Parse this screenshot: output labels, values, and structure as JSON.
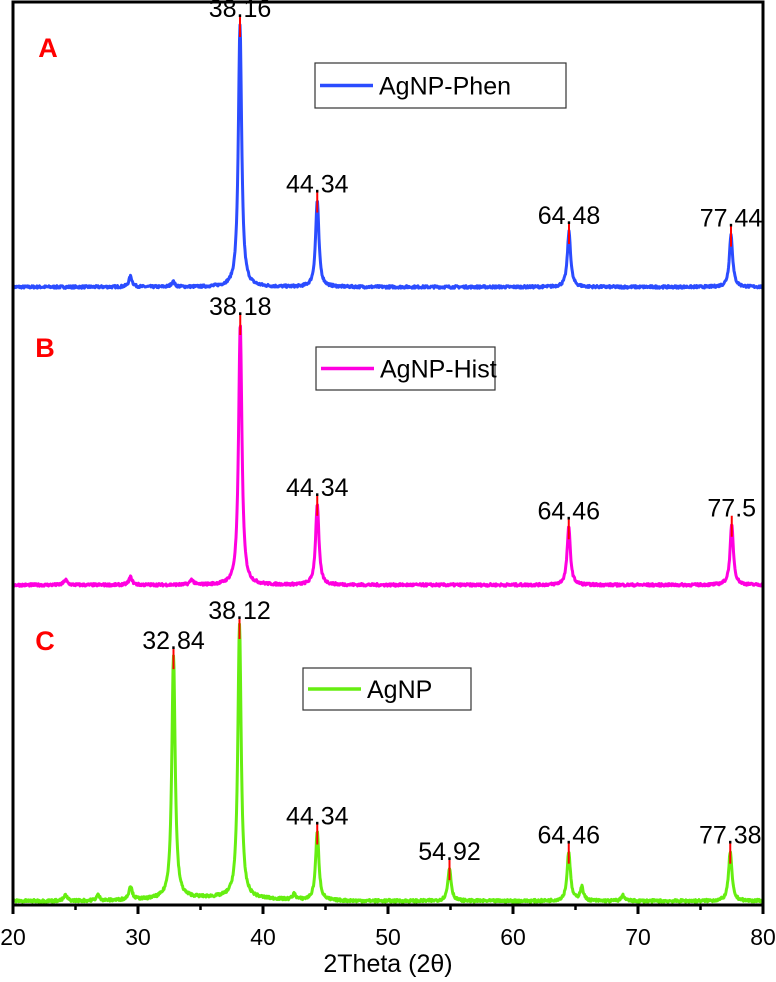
{
  "chart_data": {
    "type": "line",
    "xlabel": "2Theta (2θ)",
    "ylabel": "",
    "xlim": [
      20,
      80
    ],
    "x_ticks": [
      20,
      30,
      40,
      50,
      60,
      70,
      80
    ],
    "x_tick_labels": [
      "20",
      "30",
      "40",
      "50",
      "60",
      "70",
      "80"
    ],
    "y_ticks_shown": false,
    "grid": false,
    "layout": "three vertically stacked panels sharing x axis",
    "marker_color": "#ff0000",
    "panel_letter_color": "#ff0000",
    "panels": [
      {
        "letter": "A",
        "series": {
          "name": "AgNP-Phen",
          "color": "#2b4cff"
        },
        "legend": "top-center",
        "peaks": [
          {
            "x": 29.4,
            "rel_intensity": 4
          },
          {
            "x": 32.8,
            "rel_intensity": 2
          },
          {
            "x": 38.16,
            "rel_intensity": 100,
            "label": "38.16"
          },
          {
            "x": 44.34,
            "rel_intensity": 33,
            "label": "44.34"
          },
          {
            "x": 64.48,
            "rel_intensity": 21,
            "label": "64.48"
          },
          {
            "x": 77.44,
            "rel_intensity": 20,
            "label": "77.44"
          }
        ]
      },
      {
        "letter": "B",
        "series": {
          "name": "AgNP-Hist",
          "color": "#ff00e0"
        },
        "legend": "top-center",
        "peaks": [
          {
            "x": 24.2,
            "rel_intensity": 2
          },
          {
            "x": 29.4,
            "rel_intensity": 3
          },
          {
            "x": 34.3,
            "rel_intensity": 2
          },
          {
            "x": 38.18,
            "rel_intensity": 100,
            "label": "38.18"
          },
          {
            "x": 44.34,
            "rel_intensity": 31,
            "label": "44.34"
          },
          {
            "x": 64.46,
            "rel_intensity": 22,
            "label": "64.46"
          },
          {
            "x": 77.5,
            "rel_intensity": 23,
            "label": "77.5"
          }
        ]
      },
      {
        "letter": "C",
        "series": {
          "name": "AgNP",
          "color": "#66ee11"
        },
        "legend": "top-center",
        "peaks": [
          {
            "x": 24.2,
            "rel_intensity": 2
          },
          {
            "x": 26.8,
            "rel_intensity": 2
          },
          {
            "x": 29.4,
            "rel_intensity": 5
          },
          {
            "x": 32.84,
            "rel_intensity": 89,
            "label": "32.84"
          },
          {
            "x": 38.12,
            "rel_intensity": 100,
            "label": "38.12"
          },
          {
            "x": 42.5,
            "rel_intensity": 2
          },
          {
            "x": 44.34,
            "rel_intensity": 25,
            "label": "44.34"
          },
          {
            "x": 54.92,
            "rel_intensity": 12,
            "label": "54.92"
          },
          {
            "x": 64.46,
            "rel_intensity": 18,
            "label": "64.46"
          },
          {
            "x": 65.5,
            "rel_intensity": 5
          },
          {
            "x": 68.8,
            "rel_intensity": 2
          },
          {
            "x": 77.38,
            "rel_intensity": 18,
            "label": "77.38"
          }
        ]
      }
    ]
  }
}
